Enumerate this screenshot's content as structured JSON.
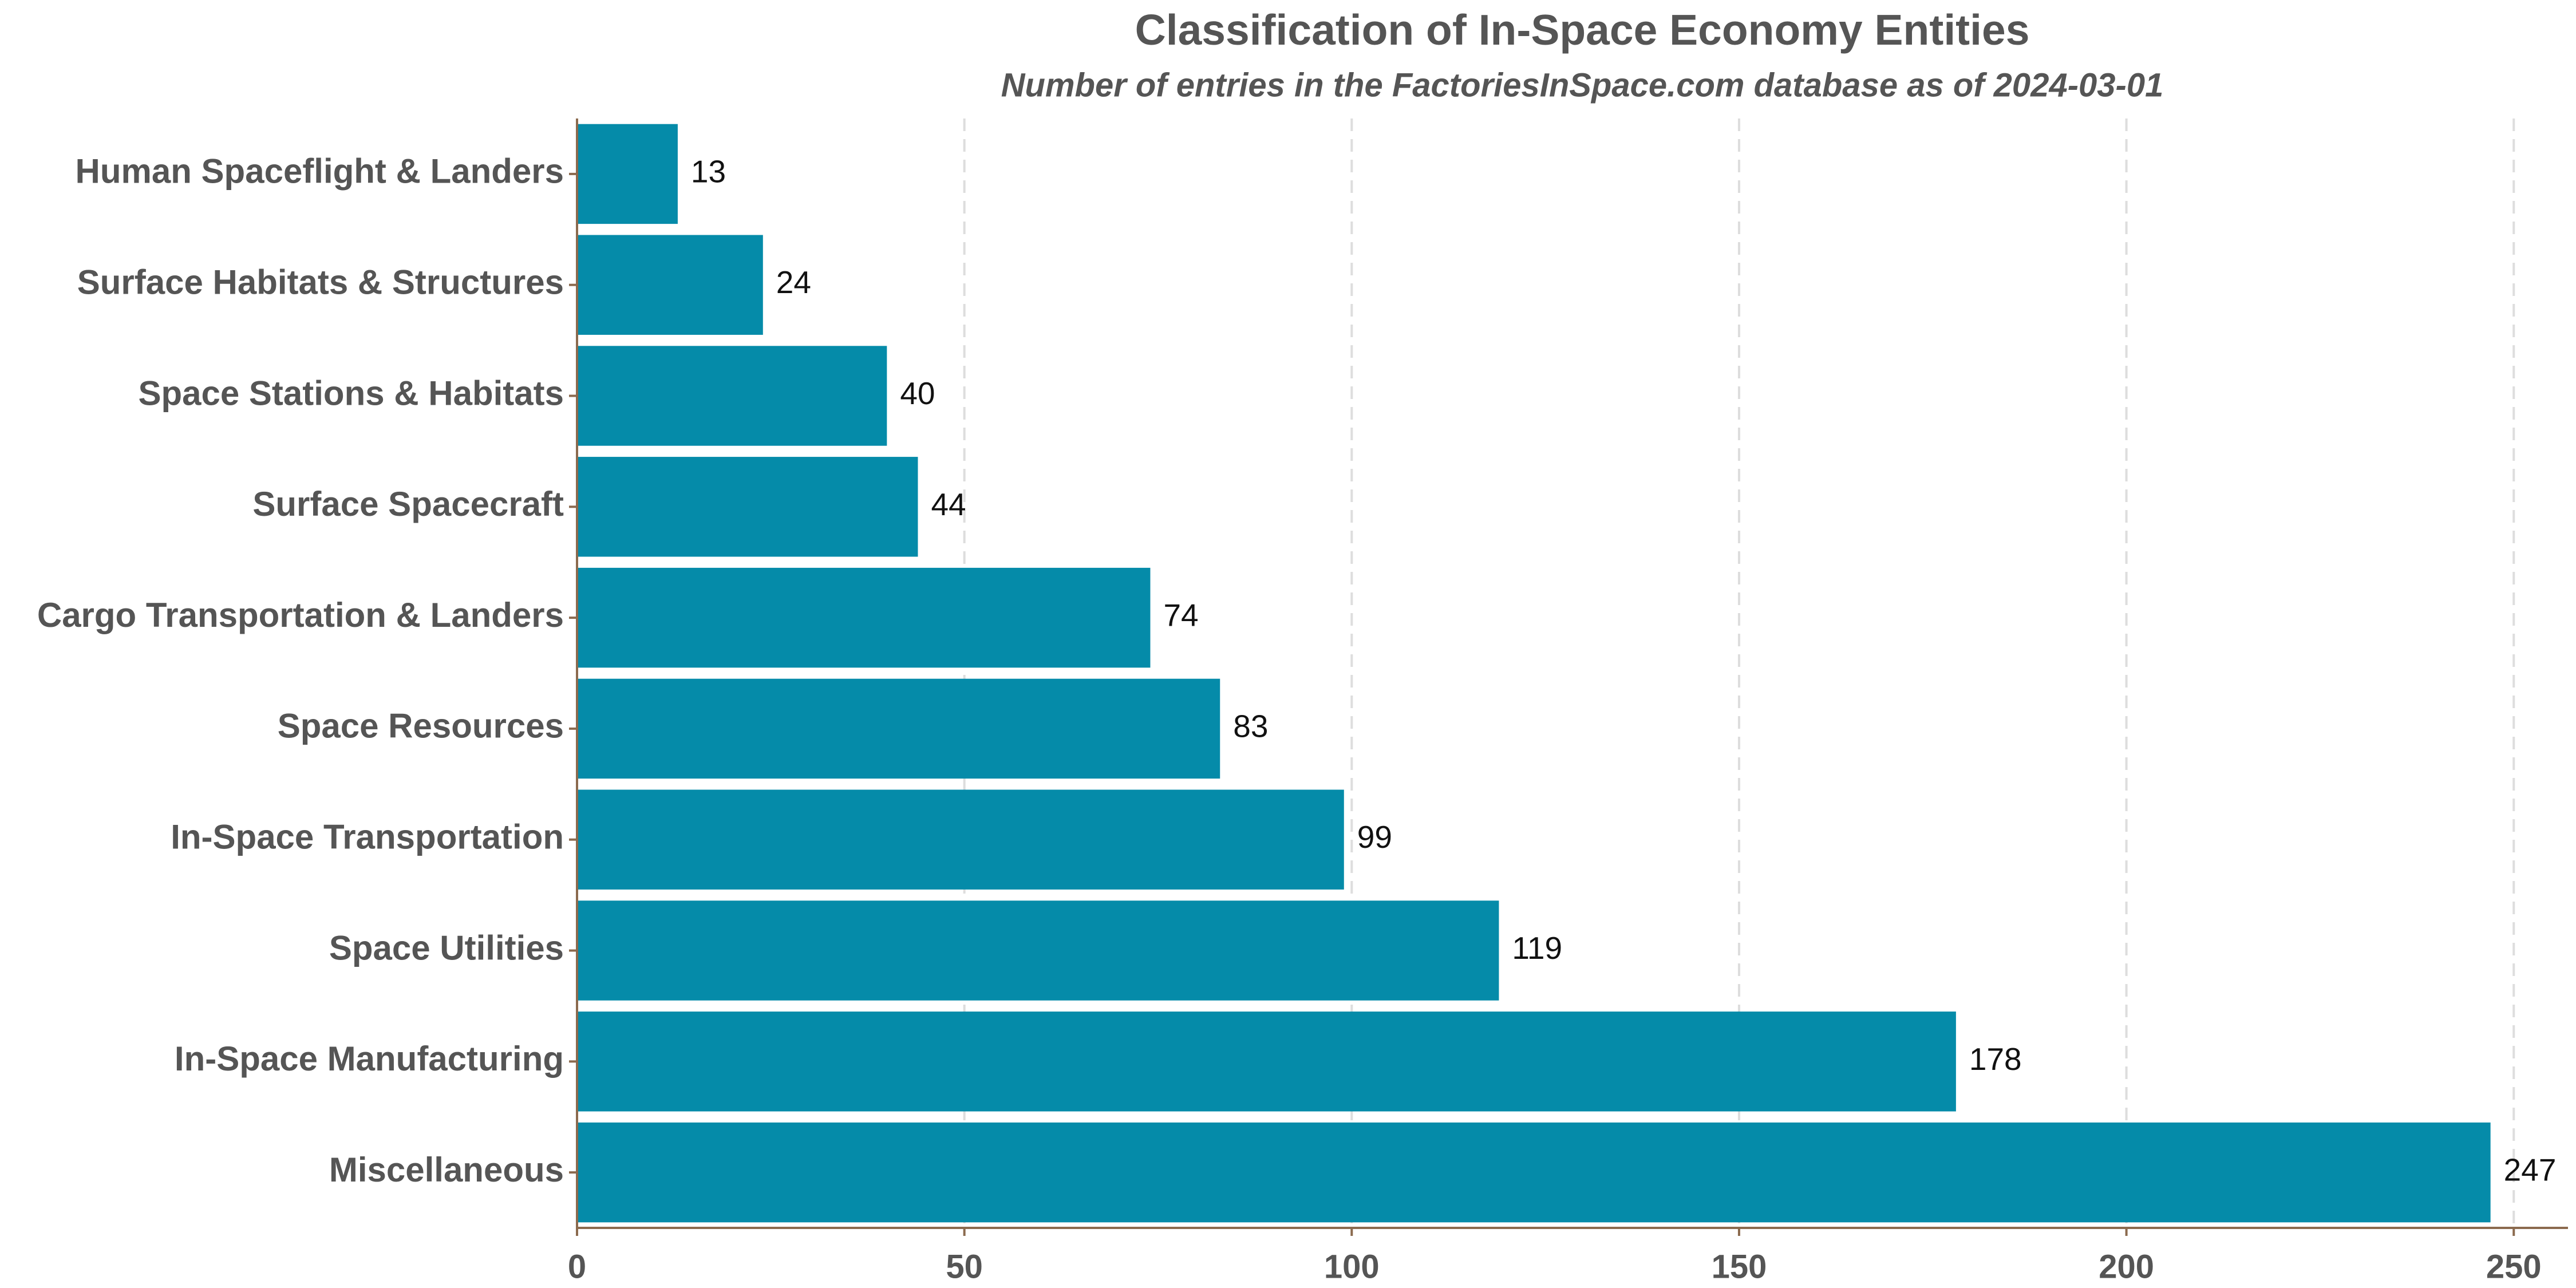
{
  "chart_data": {
    "type": "bar",
    "orientation": "horizontal",
    "title": "Classification of In-Space Economy Entities",
    "subtitle": "Number of entries in the FactoriesInSpace.com database as of 2024-03-01",
    "categories": [
      "Human Spaceflight & Landers",
      "Surface Habitats & Structures",
      "Space Stations & Habitats",
      "Surface Spacecraft",
      "Cargo Transportation & Landers",
      "Space Resources",
      "In-Space Transportation",
      "Space Utilities",
      "In-Space Manufacturing",
      "Miscellaneous"
    ],
    "values": [
      13,
      24,
      40,
      44,
      74,
      83,
      99,
      119,
      178,
      247
    ],
    "color": "#058ba9",
    "xlim": [
      0,
      257
    ],
    "xticks": [
      0,
      50,
      100,
      150,
      200,
      250
    ],
    "grid": true
  }
}
